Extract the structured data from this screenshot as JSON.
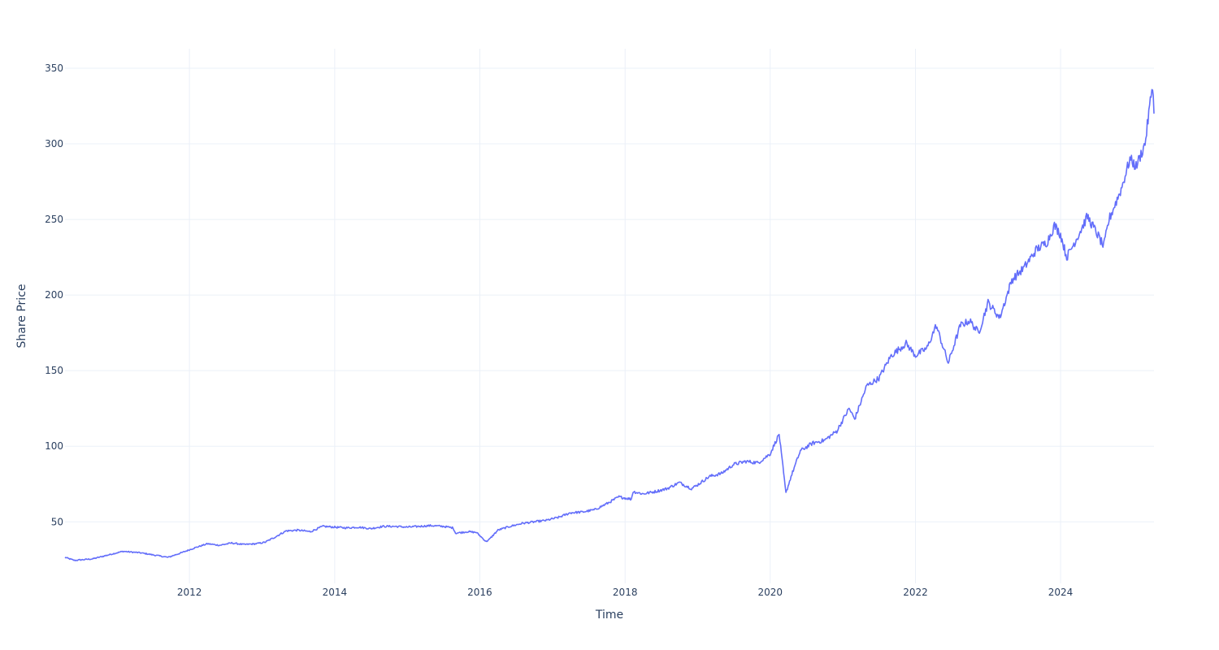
{
  "chart_data": {
    "type": "line",
    "title": "",
    "xlabel": "Time",
    "ylabel": "Share Price",
    "xlim": [
      "2010-04-15",
      "2025-04-15"
    ],
    "ylim": [
      9.3,
      362.9
    ],
    "x_ticks": [
      {
        "date": "2012-01-01",
        "label": "2012"
      },
      {
        "date": "2014-01-01",
        "label": "2014"
      },
      {
        "date": "2016-01-01",
        "label": "2016"
      },
      {
        "date": "2018-01-01",
        "label": "2018"
      },
      {
        "date": "2020-01-01",
        "label": "2020"
      },
      {
        "date": "2022-01-01",
        "label": "2022"
      },
      {
        "date": "2024-01-01",
        "label": "2024"
      }
    ],
    "y_ticks": [
      {
        "value": 50,
        "label": "50"
      },
      {
        "value": 100,
        "label": "100"
      },
      {
        "value": 150,
        "label": "150"
      },
      {
        "value": 200,
        "label": "200"
      },
      {
        "value": 250,
        "label": "250"
      },
      {
        "value": 300,
        "label": "300"
      },
      {
        "value": 350,
        "label": "350"
      }
    ],
    "grid": true,
    "line_color": "#636efa",
    "series": [
      {
        "x": [
          "2010-04-15",
          "2010-06-01",
          "2010-09-01",
          "2010-12-01",
          "2011-02-01",
          "2011-05-01",
          "2011-08-01",
          "2011-09-15",
          "2011-12-01",
          "2012-02-01",
          "2012-04-01",
          "2012-06-01",
          "2012-08-01",
          "2012-10-01",
          "2012-12-01",
          "2013-01-15",
          "2013-03-01",
          "2013-05-01",
          "2013-07-01",
          "2013-09-01",
          "2013-11-01",
          "2014-01-01",
          "2014-03-01",
          "2014-05-01",
          "2014-07-01",
          "2014-09-01",
          "2014-11-01",
          "2015-01-01",
          "2015-03-01",
          "2015-05-01",
          "2015-07-01",
          "2015-08-20",
          "2015-09-01",
          "2015-11-01",
          "2015-12-15",
          "2016-02-01",
          "2016-02-15",
          "2016-04-01",
          "2016-06-01",
          "2016-08-01",
          "2016-10-01",
          "2016-12-01",
          "2017-02-01",
          "2017-04-01",
          "2017-06-01",
          "2017-08-01",
          "2017-10-01",
          "2017-12-01",
          "2018-02-01",
          "2018-02-10",
          "2018-04-01",
          "2018-06-01",
          "2018-08-01",
          "2018-10-01",
          "2018-12-01",
          "2019-01-01",
          "2019-03-01",
          "2019-05-01",
          "2019-07-01",
          "2019-09-01",
          "2019-11-01",
          "2020-01-01",
          "2020-02-15",
          "2020-03-20",
          "2020-04-15",
          "2020-06-01",
          "2020-08-01",
          "2020-10-01",
          "2020-12-01",
          "2021-02-01",
          "2021-03-01",
          "2021-05-01",
          "2021-07-01",
          "2021-09-01",
          "2021-11-15",
          "2022-01-01",
          "2022-03-01",
          "2022-04-15",
          "2022-06-15",
          "2022-08-15",
          "2022-10-01",
          "2022-11-15",
          "2023-01-01",
          "2023-03-01",
          "2023-05-01",
          "2023-07-01",
          "2023-09-01",
          "2023-10-25",
          "2023-12-01",
          "2024-01-01",
          "2024-02-01",
          "2024-04-01",
          "2024-05-15",
          "2024-07-05",
          "2024-08-05",
          "2024-09-01",
          "2024-11-01",
          "2024-12-15",
          "2025-01-15",
          "2025-03-01",
          "2025-04-08",
          "2025-04-15"
        ],
        "y": [
          26.5,
          24.5,
          25.5,
          28.5,
          30.5,
          29.5,
          27.5,
          26.5,
          30.0,
          33.0,
          35.5,
          34.5,
          36.0,
          35.0,
          35.5,
          36.5,
          39.5,
          44.0,
          44.5,
          43.5,
          47.0,
          46.5,
          46.0,
          46.5,
          45.5,
          47.0,
          47.0,
          46.5,
          47.0,
          47.5,
          47.0,
          46.0,
          42.5,
          43.5,
          43.0,
          37.0,
          38.0,
          44.5,
          47.0,
          49.0,
          50.0,
          51.0,
          53.0,
          56.0,
          56.5,
          58.0,
          62.0,
          66.5,
          65.0,
          70.0,
          68.5,
          70.0,
          72.0,
          76.0,
          72.0,
          74.5,
          80.0,
          82.0,
          88.0,
          90.0,
          89.0,
          95.0,
          108.0,
          69.0,
          80.0,
          97.0,
          102.0,
          104.0,
          110.0,
          125.0,
          118.0,
          140.0,
          145.0,
          160.0,
          168.0,
          160.0,
          165.0,
          180.0,
          155.0,
          180.0,
          183.0,
          175.0,
          195.0,
          185.0,
          210.0,
          218.0,
          230.0,
          235.0,
          246.0,
          240.0,
          225.0,
          240.0,
          252.0,
          240.0,
          232.0,
          250.0,
          270.0,
          290.0,
          285.0,
          300.0,
          340.0,
          320.0
        ]
      }
    ]
  }
}
